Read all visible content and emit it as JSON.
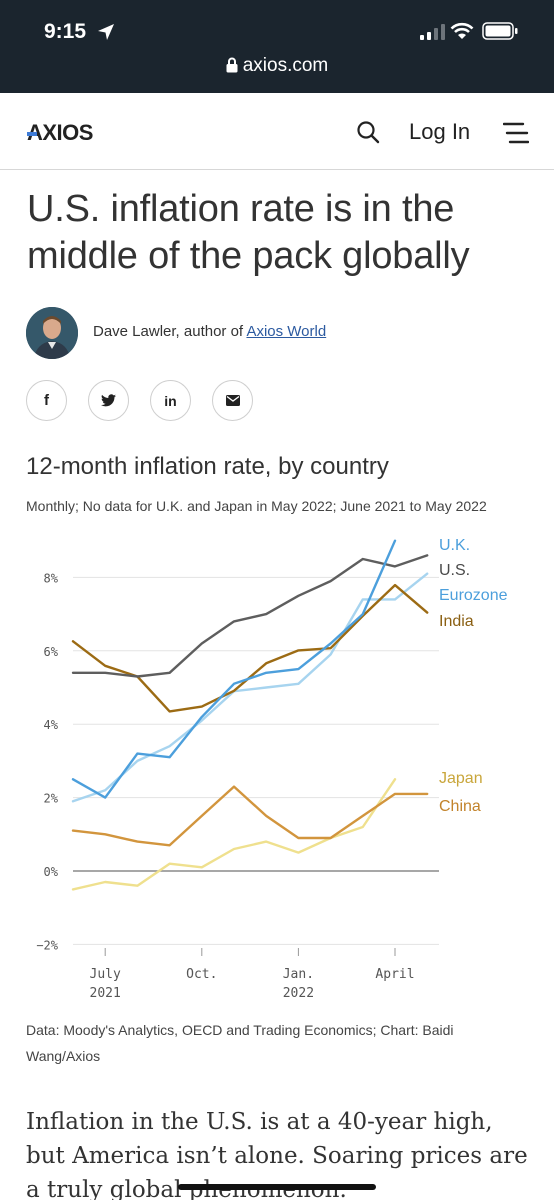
{
  "status_bar": {
    "time": "9:15",
    "url": "axios.com"
  },
  "nav": {
    "logo": "AXIOS",
    "login_label": "Log In",
    "icons": [
      "search-icon",
      "menu-icon"
    ]
  },
  "article": {
    "headline": "U.S. inflation rate is in the middle of the pack globally",
    "author_prefix": "Dave Lawler, author of ",
    "author_link": "Axios World",
    "share_icons": [
      "facebook-icon",
      "twitter-icon",
      "linkedin-icon",
      "email-icon"
    ],
    "share_labels": {
      "facebook": "f",
      "linkedin": "in"
    },
    "body_text": "Inflation in the U.S. is at a 40-year high, but America isn’t alone. Soaring prices are a truly global phenomenon."
  },
  "chart_data": {
    "type": "line",
    "title": "12-month inflation rate, by country",
    "subtitle": "Monthly; No data for U.K. and Japan in May 2022; June 2021 to May 2022",
    "x": [
      "2021-06",
      "2021-07",
      "2021-08",
      "2021-09",
      "2021-10",
      "2021-11",
      "2021-12",
      "2022-01",
      "2022-02",
      "2022-03",
      "2022-04",
      "2022-05"
    ],
    "x_ticks": [
      {
        "label": [
          "July",
          "2021"
        ],
        "x": "2021-07"
      },
      {
        "label": [
          "Oct."
        ],
        "x": "2021-10"
      },
      {
        "label": [
          "Jan.",
          "2022"
        ],
        "x": "2022-01"
      },
      {
        "label": [
          "April"
        ],
        "x": "2022-04"
      }
    ],
    "y_ticks": [
      {
        "value": -2,
        "label": "−2%"
      },
      {
        "value": 0,
        "label": "0%"
      },
      {
        "value": 2,
        "label": "2%"
      },
      {
        "value": 4,
        "label": "4%"
      },
      {
        "value": 6,
        "label": "6%"
      },
      {
        "value": 8,
        "label": "8%"
      }
    ],
    "ylim": [
      -2,
      9.3
    ],
    "grid": "horizontal",
    "series": [
      {
        "name": "U.K.",
        "color": "#4c9fdc",
        "values": [
          2.5,
          2.0,
          3.2,
          3.1,
          4.2,
          5.1,
          5.4,
          5.5,
          6.2,
          7.0,
          9.0,
          null
        ]
      },
      {
        "name": "U.S.",
        "color": "#5e5e5e",
        "values": [
          5.4,
          5.4,
          5.3,
          5.4,
          6.2,
          6.8,
          7.0,
          7.5,
          7.9,
          8.5,
          8.3,
          8.6
        ]
      },
      {
        "name": "Eurozone",
        "color": "#a7d4ef",
        "values": [
          1.9,
          2.2,
          3.0,
          3.4,
          4.1,
          4.9,
          5.0,
          5.1,
          5.9,
          7.4,
          7.4,
          8.1
        ]
      },
      {
        "name": "India",
        "color": "#9c6b14",
        "values": [
          6.26,
          5.59,
          5.3,
          4.35,
          4.48,
          4.91,
          5.66,
          6.01,
          6.07,
          6.95,
          7.79,
          7.04
        ]
      },
      {
        "name": "Japan",
        "color": "#efe08e",
        "values": [
          -0.5,
          -0.3,
          -0.4,
          0.2,
          0.1,
          0.6,
          0.8,
          0.5,
          0.9,
          1.2,
          2.5,
          null
        ]
      },
      {
        "name": "China",
        "color": "#d2953d",
        "values": [
          1.1,
          1.0,
          0.8,
          0.7,
          1.5,
          2.3,
          1.5,
          0.9,
          0.9,
          1.5,
          2.1,
          2.1
        ]
      }
    ]
  },
  "source_note": "Data: Moody's Analytics, OECD and Trading Economics; Chart: Baidi Wang/Axios"
}
